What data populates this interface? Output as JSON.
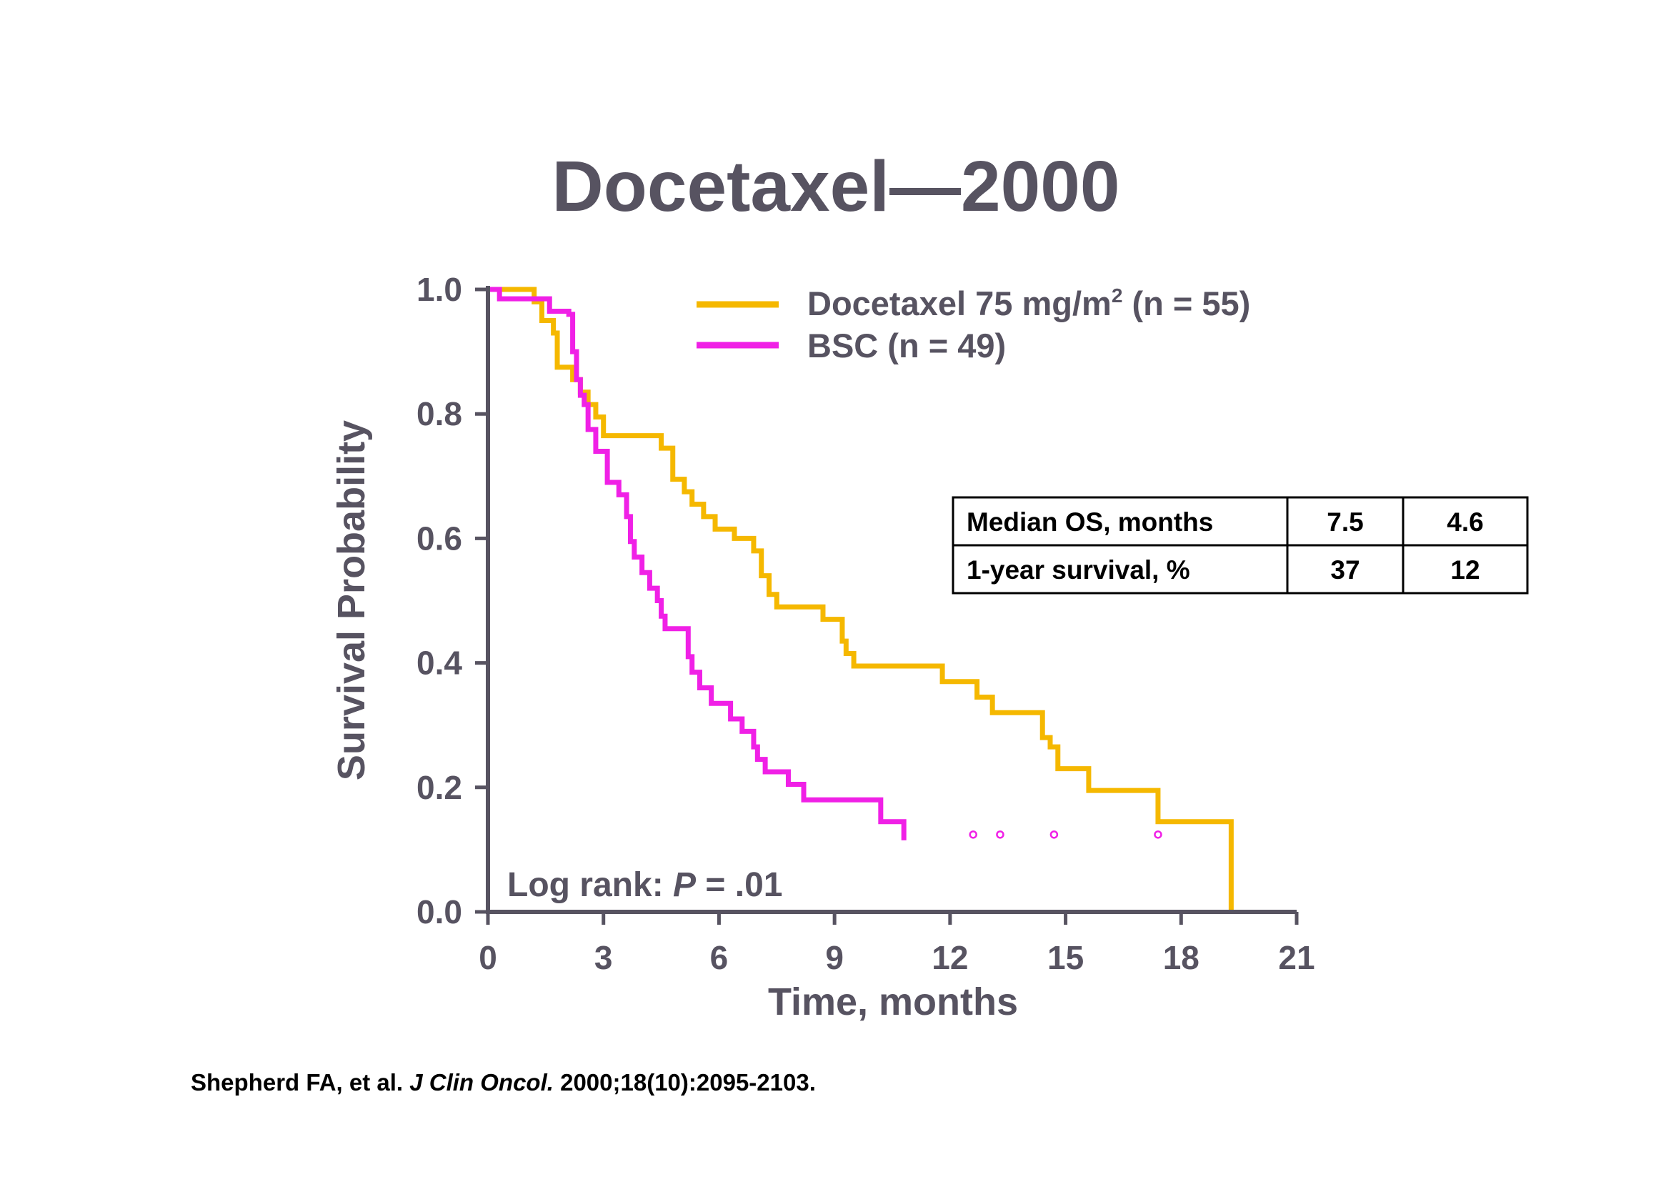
{
  "slide": {
    "title": "Docetaxel—2000",
    "annotation": {
      "prefix": "Log rank: ",
      "italic": "P",
      "suffix": " = .01"
    },
    "citation": {
      "authors": "Shepherd FA, et al. ",
      "journal": "J Clin Oncol.",
      "details": " 2000;18(10):2095-2103."
    }
  },
  "chart_data": {
    "type": "line",
    "step": true,
    "xlabel": "Time, months",
    "ylabel": "Survival Probability",
    "xlim": [
      0,
      21
    ],
    "ylim": [
      0,
      1.0
    ],
    "xticks": [
      0,
      3,
      6,
      9,
      12,
      15,
      18,
      21
    ],
    "yticks": [
      "0.0",
      "0.2",
      "0.4",
      "0.6",
      "0.8",
      "1.0"
    ],
    "legend_position": "top",
    "series": [
      {
        "name_main": "Docetaxel 75 mg/m",
        "name_sup": "2",
        "name_tail": " (n = 55)",
        "color": "#F5B800",
        "x": [
          0,
          1.2,
          1.4,
          1.7,
          1.8,
          2.2,
          2.4,
          2.6,
          2.8,
          3.0,
          3.6,
          4.5,
          4.8,
          5.1,
          5.3,
          5.6,
          5.9,
          6.4,
          6.9,
          7.1,
          7.3,
          7.5,
          8.7,
          9.2,
          9.3,
          9.5,
          11.8,
          12.7,
          13.1,
          14.4,
          14.6,
          14.8,
          15.6,
          17.4,
          19.3,
          19.3
        ],
        "y": [
          1.0,
          0.98,
          0.95,
          0.93,
          0.875,
          0.855,
          0.835,
          0.815,
          0.795,
          0.765,
          0.765,
          0.745,
          0.695,
          0.675,
          0.655,
          0.635,
          0.615,
          0.6,
          0.58,
          0.54,
          0.51,
          0.49,
          0.47,
          0.435,
          0.415,
          0.395,
          0.37,
          0.345,
          0.32,
          0.28,
          0.265,
          0.23,
          0.195,
          0.145,
          0.145,
          0.0
        ]
      },
      {
        "name_main": "BSC (n = 49)",
        "name_sup": "",
        "name_tail": "",
        "color": "#F020E6",
        "x": [
          0,
          0.3,
          1.6,
          2.1,
          2.2,
          2.3,
          2.4,
          2.5,
          2.6,
          2.8,
          3.1,
          3.4,
          3.6,
          3.7,
          3.8,
          4.0,
          4.2,
          4.4,
          4.5,
          4.6,
          4.7,
          5.2,
          5.3,
          5.5,
          5.8,
          6.3,
          6.6,
          6.9,
          7.0,
          7.2,
          7.8,
          8.2,
          10.2,
          10.8,
          10.8
        ],
        "y": [
          1.0,
          0.985,
          0.965,
          0.96,
          0.9,
          0.855,
          0.83,
          0.815,
          0.775,
          0.74,
          0.69,
          0.67,
          0.635,
          0.595,
          0.57,
          0.545,
          0.52,
          0.5,
          0.475,
          0.455,
          0.455,
          0.41,
          0.385,
          0.36,
          0.335,
          0.31,
          0.29,
          0.265,
          0.245,
          0.225,
          0.205,
          0.18,
          0.145,
          0.145,
          0.115
        ],
        "censored_x": [
          12.6,
          13.3,
          14.7,
          17.4
        ],
        "censored_y": 0.115
      }
    ],
    "table": {
      "rows": [
        [
          "Median OS, months",
          "7.5",
          "4.6"
        ],
        [
          "1-year survival, %",
          "37",
          "12"
        ]
      ]
    }
  }
}
